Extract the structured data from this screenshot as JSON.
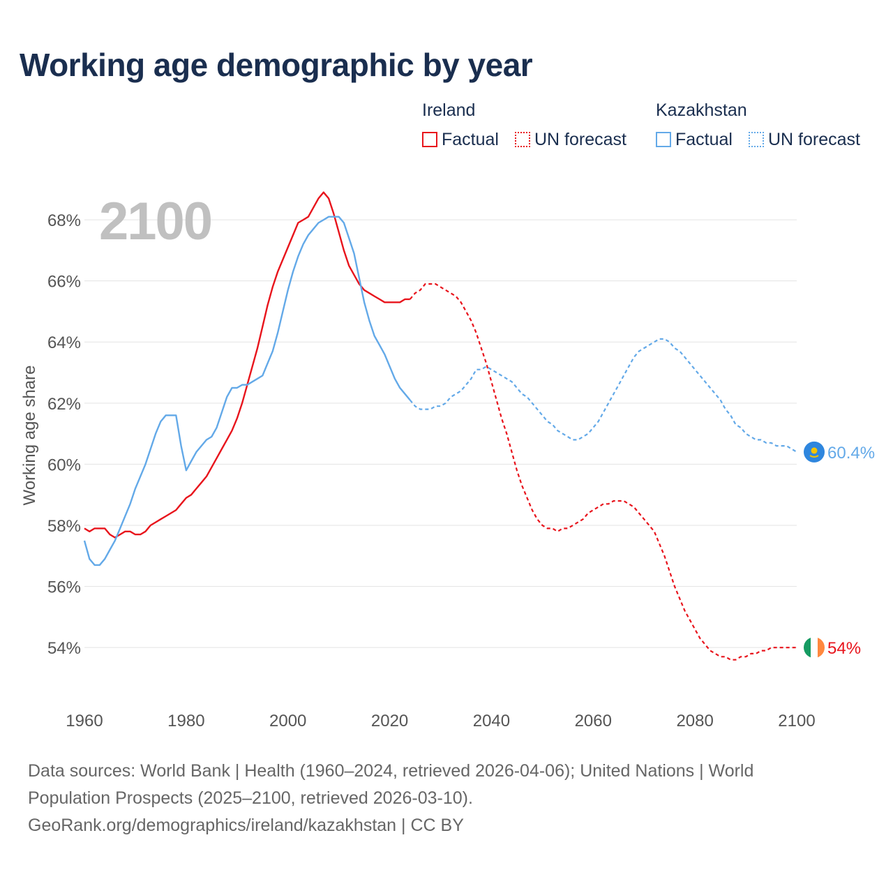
{
  "title": "Working age demographic by year",
  "legend": {
    "groups": [
      {
        "name": "Ireland",
        "color": "#e8141c",
        "factual": "Factual",
        "forecast": "UN forecast"
      },
      {
        "name": "Kazakhstan",
        "color": "#63a9e8",
        "factual": "Factual",
        "forecast": "UN forecast"
      }
    ]
  },
  "footer": {
    "line1": "Data sources: World Bank | Health (1960–2024, retrieved 2026-04-06); United Nations | World",
    "line2": "Population Prospects (2025–2100, retrieved 2026-03-10).",
    "line3": "GeoRank.org/demographics/ireland/kazakhstan | CC BY"
  },
  "chart_data": {
    "type": "line",
    "year_label": "2100",
    "ylabel": "Working age share",
    "xlim": [
      1960,
      2100
    ],
    "ylim": [
      52.2,
      69.6
    ],
    "x_ticks": [
      1960,
      1980,
      2000,
      2020,
      2040,
      2060,
      2080,
      2100
    ],
    "x_tick_labels": [
      "1960",
      "1980",
      "2000",
      "2020",
      "2040",
      "2060",
      "2080",
      "2100"
    ],
    "y_ticks": [
      54,
      56,
      58,
      60,
      62,
      64,
      66,
      68
    ],
    "y_tick_labels": [
      "54%",
      "56%",
      "58%",
      "60%",
      "62%",
      "64%",
      "66%",
      "68%"
    ],
    "factual_until": 2024,
    "series": [
      {
        "name": "Ireland",
        "color": "#e8141c",
        "end_label": "54%",
        "points": [
          [
            1960,
            57.9
          ],
          [
            1961,
            57.8
          ],
          [
            1962,
            57.9
          ],
          [
            1963,
            57.9
          ],
          [
            1964,
            57.9
          ],
          [
            1965,
            57.7
          ],
          [
            1966,
            57.6
          ],
          [
            1967,
            57.7
          ],
          [
            1968,
            57.8
          ],
          [
            1969,
            57.8
          ],
          [
            1970,
            57.7
          ],
          [
            1971,
            57.7
          ],
          [
            1972,
            57.8
          ],
          [
            1973,
            58.0
          ],
          [
            1974,
            58.1
          ],
          [
            1975,
            58.2
          ],
          [
            1976,
            58.3
          ],
          [
            1977,
            58.4
          ],
          [
            1978,
            58.5
          ],
          [
            1979,
            58.7
          ],
          [
            1980,
            58.9
          ],
          [
            1981,
            59.0
          ],
          [
            1982,
            59.2
          ],
          [
            1983,
            59.4
          ],
          [
            1984,
            59.6
          ],
          [
            1985,
            59.9
          ],
          [
            1986,
            60.2
          ],
          [
            1987,
            60.5
          ],
          [
            1988,
            60.8
          ],
          [
            1989,
            61.1
          ],
          [
            1990,
            61.5
          ],
          [
            1991,
            62.0
          ],
          [
            1992,
            62.6
          ],
          [
            1993,
            63.2
          ],
          [
            1994,
            63.8
          ],
          [
            1995,
            64.5
          ],
          [
            1996,
            65.2
          ],
          [
            1997,
            65.8
          ],
          [
            1998,
            66.3
          ],
          [
            1999,
            66.7
          ],
          [
            2000,
            67.1
          ],
          [
            2001,
            67.5
          ],
          [
            2002,
            67.9
          ],
          [
            2003,
            68.0
          ],
          [
            2004,
            68.1
          ],
          [
            2005,
            68.4
          ],
          [
            2006,
            68.7
          ],
          [
            2007,
            68.9
          ],
          [
            2008,
            68.7
          ],
          [
            2009,
            68.2
          ],
          [
            2010,
            67.6
          ],
          [
            2011,
            67.0
          ],
          [
            2012,
            66.5
          ],
          [
            2013,
            66.2
          ],
          [
            2014,
            65.9
          ],
          [
            2015,
            65.7
          ],
          [
            2016,
            65.6
          ],
          [
            2017,
            65.5
          ],
          [
            2018,
            65.4
          ],
          [
            2019,
            65.3
          ],
          [
            2020,
            65.3
          ],
          [
            2021,
            65.3
          ],
          [
            2022,
            65.3
          ],
          [
            2023,
            65.4
          ],
          [
            2024,
            65.4
          ],
          [
            2025,
            65.6
          ],
          [
            2026,
            65.7
          ],
          [
            2027,
            65.9
          ],
          [
            2028,
            65.9
          ],
          [
            2029,
            65.9
          ],
          [
            2030,
            65.8
          ],
          [
            2031,
            65.7
          ],
          [
            2032,
            65.6
          ],
          [
            2033,
            65.5
          ],
          [
            2034,
            65.3
          ],
          [
            2035,
            65.0
          ],
          [
            2036,
            64.7
          ],
          [
            2037,
            64.3
          ],
          [
            2038,
            63.8
          ],
          [
            2039,
            63.3
          ],
          [
            2040,
            62.7
          ],
          [
            2041,
            62.1
          ],
          [
            2042,
            61.5
          ],
          [
            2043,
            61.0
          ],
          [
            2044,
            60.4
          ],
          [
            2045,
            59.8
          ],
          [
            2046,
            59.3
          ],
          [
            2047,
            58.9
          ],
          [
            2048,
            58.5
          ],
          [
            2049,
            58.2
          ],
          [
            2050,
            58.0
          ],
          [
            2051,
            57.9
          ],
          [
            2052,
            57.9
          ],
          [
            2053,
            57.8
          ],
          [
            2054,
            57.9
          ],
          [
            2055,
            57.9
          ],
          [
            2056,
            58.0
          ],
          [
            2057,
            58.1
          ],
          [
            2058,
            58.2
          ],
          [
            2059,
            58.4
          ],
          [
            2060,
            58.5
          ],
          [
            2061,
            58.6
          ],
          [
            2062,
            58.7
          ],
          [
            2063,
            58.7
          ],
          [
            2064,
            58.8
          ],
          [
            2065,
            58.8
          ],
          [
            2066,
            58.8
          ],
          [
            2067,
            58.7
          ],
          [
            2068,
            58.6
          ],
          [
            2069,
            58.4
          ],
          [
            2070,
            58.2
          ],
          [
            2071,
            58.0
          ],
          [
            2072,
            57.8
          ],
          [
            2073,
            57.4
          ],
          [
            2074,
            57.0
          ],
          [
            2075,
            56.5
          ],
          [
            2076,
            56.0
          ],
          [
            2077,
            55.6
          ],
          [
            2078,
            55.2
          ],
          [
            2079,
            54.9
          ],
          [
            2080,
            54.6
          ],
          [
            2081,
            54.3
          ],
          [
            2082,
            54.1
          ],
          [
            2083,
            53.9
          ],
          [
            2084,
            53.8
          ],
          [
            2085,
            53.7
          ],
          [
            2086,
            53.7
          ],
          [
            2087,
            53.6
          ],
          [
            2088,
            53.6
          ],
          [
            2089,
            53.7
          ],
          [
            2090,
            53.7
          ],
          [
            2091,
            53.8
          ],
          [
            2092,
            53.8
          ],
          [
            2093,
            53.9
          ],
          [
            2094,
            53.9
          ],
          [
            2095,
            54.0
          ],
          [
            2096,
            54.0
          ],
          [
            2097,
            54.0
          ],
          [
            2098,
            54.0
          ],
          [
            2099,
            54.0
          ],
          [
            2100,
            54.0
          ]
        ]
      },
      {
        "name": "Kazakhstan",
        "color": "#63a9e8",
        "end_label": "60.4%",
        "points": [
          [
            1960,
            57.5
          ],
          [
            1961,
            56.9
          ],
          [
            1962,
            56.7
          ],
          [
            1963,
            56.7
          ],
          [
            1964,
            56.9
          ],
          [
            1965,
            57.2
          ],
          [
            1966,
            57.5
          ],
          [
            1967,
            57.9
          ],
          [
            1968,
            58.3
          ],
          [
            1969,
            58.7
          ],
          [
            1970,
            59.2
          ],
          [
            1971,
            59.6
          ],
          [
            1972,
            60.0
          ],
          [
            1973,
            60.5
          ],
          [
            1974,
            61.0
          ],
          [
            1975,
            61.4
          ],
          [
            1976,
            61.6
          ],
          [
            1977,
            61.6
          ],
          [
            1978,
            61.6
          ],
          [
            1979,
            60.6
          ],
          [
            1980,
            59.8
          ],
          [
            1981,
            60.1
          ],
          [
            1982,
            60.4
          ],
          [
            1983,
            60.6
          ],
          [
            1984,
            60.8
          ],
          [
            1985,
            60.9
          ],
          [
            1986,
            61.2
          ],
          [
            1987,
            61.7
          ],
          [
            1988,
            62.2
          ],
          [
            1989,
            62.5
          ],
          [
            1990,
            62.5
          ],
          [
            1991,
            62.6
          ],
          [
            1992,
            62.6
          ],
          [
            1993,
            62.7
          ],
          [
            1994,
            62.8
          ],
          [
            1995,
            62.9
          ],
          [
            1996,
            63.3
          ],
          [
            1997,
            63.7
          ],
          [
            1998,
            64.3
          ],
          [
            1999,
            65.0
          ],
          [
            2000,
            65.7
          ],
          [
            2001,
            66.3
          ],
          [
            2002,
            66.8
          ],
          [
            2003,
            67.2
          ],
          [
            2004,
            67.5
          ],
          [
            2005,
            67.7
          ],
          [
            2006,
            67.9
          ],
          [
            2007,
            68.0
          ],
          [
            2008,
            68.1
          ],
          [
            2009,
            68.1
          ],
          [
            2010,
            68.1
          ],
          [
            2011,
            67.9
          ],
          [
            2012,
            67.4
          ],
          [
            2013,
            66.9
          ],
          [
            2014,
            66.1
          ],
          [
            2015,
            65.3
          ],
          [
            2016,
            64.7
          ],
          [
            2017,
            64.2
          ],
          [
            2018,
            63.9
          ],
          [
            2019,
            63.6
          ],
          [
            2020,
            63.2
          ],
          [
            2021,
            62.8
          ],
          [
            2022,
            62.5
          ],
          [
            2023,
            62.3
          ],
          [
            2024,
            62.1
          ],
          [
            2025,
            61.9
          ],
          [
            2026,
            61.8
          ],
          [
            2027,
            61.8
          ],
          [
            2028,
            61.8
          ],
          [
            2029,
            61.9
          ],
          [
            2030,
            61.9
          ],
          [
            2031,
            62.0
          ],
          [
            2032,
            62.2
          ],
          [
            2033,
            62.3
          ],
          [
            2034,
            62.4
          ],
          [
            2035,
            62.6
          ],
          [
            2036,
            62.8
          ],
          [
            2037,
            63.1
          ],
          [
            2038,
            63.1
          ],
          [
            2039,
            63.2
          ],
          [
            2040,
            63.1
          ],
          [
            2041,
            63.0
          ],
          [
            2042,
            62.9
          ],
          [
            2043,
            62.8
          ],
          [
            2044,
            62.7
          ],
          [
            2045,
            62.5
          ],
          [
            2046,
            62.3
          ],
          [
            2047,
            62.2
          ],
          [
            2048,
            62.0
          ],
          [
            2049,
            61.8
          ],
          [
            2050,
            61.6
          ],
          [
            2051,
            61.4
          ],
          [
            2052,
            61.3
          ],
          [
            2053,
            61.1
          ],
          [
            2054,
            61.0
          ],
          [
            2055,
            60.9
          ],
          [
            2056,
            60.8
          ],
          [
            2057,
            60.8
          ],
          [
            2058,
            60.9
          ],
          [
            2059,
            61.0
          ],
          [
            2060,
            61.2
          ],
          [
            2061,
            61.4
          ],
          [
            2062,
            61.7
          ],
          [
            2063,
            62.0
          ],
          [
            2064,
            62.3
          ],
          [
            2065,
            62.6
          ],
          [
            2066,
            62.9
          ],
          [
            2067,
            63.2
          ],
          [
            2068,
            63.5
          ],
          [
            2069,
            63.7
          ],
          [
            2070,
            63.8
          ],
          [
            2071,
            63.9
          ],
          [
            2072,
            64.0
          ],
          [
            2073,
            64.1
          ],
          [
            2074,
            64.1
          ],
          [
            2075,
            64.0
          ],
          [
            2076,
            63.8
          ],
          [
            2077,
            63.7
          ],
          [
            2078,
            63.5
          ],
          [
            2079,
            63.3
          ],
          [
            2080,
            63.1
          ],
          [
            2081,
            62.9
          ],
          [
            2082,
            62.7
          ],
          [
            2083,
            62.5
          ],
          [
            2084,
            62.3
          ],
          [
            2085,
            62.1
          ],
          [
            2086,
            61.8
          ],
          [
            2087,
            61.6
          ],
          [
            2088,
            61.3
          ],
          [
            2089,
            61.2
          ],
          [
            2090,
            61.0
          ],
          [
            2091,
            60.9
          ],
          [
            2092,
            60.8
          ],
          [
            2093,
            60.8
          ],
          [
            2094,
            60.7
          ],
          [
            2095,
            60.7
          ],
          [
            2096,
            60.6
          ],
          [
            2097,
            60.6
          ],
          [
            2098,
            60.6
          ],
          [
            2099,
            60.5
          ],
          [
            2100,
            60.4
          ]
        ]
      }
    ]
  }
}
